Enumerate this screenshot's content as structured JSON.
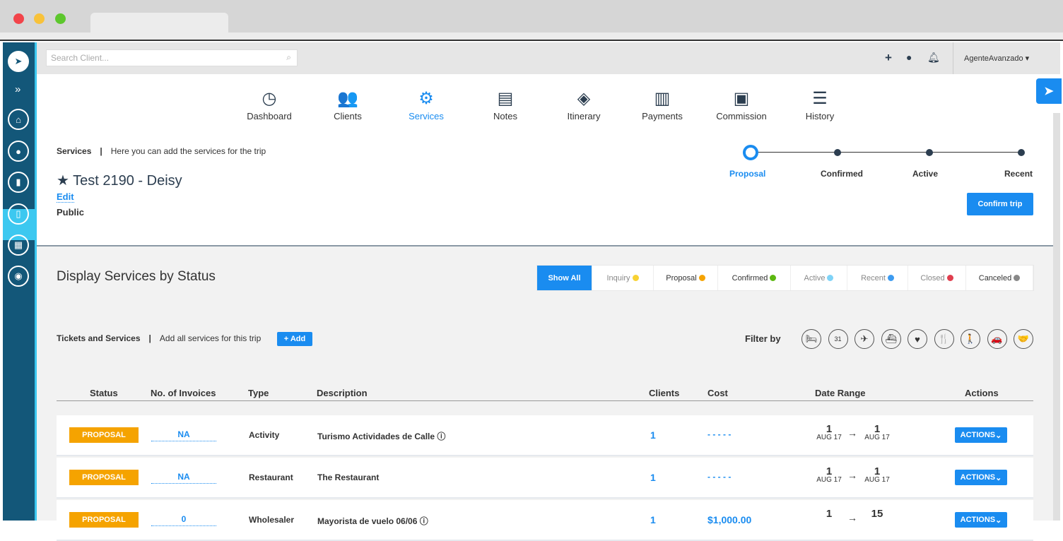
{
  "search": {
    "placeholder": "Search Client..."
  },
  "user": {
    "name": "AgenteAvanzado"
  },
  "nav": [
    {
      "label": "Dashboard",
      "icon": "dashboard-icon",
      "glyph": "◷"
    },
    {
      "label": "Clients",
      "icon": "clients-icon",
      "glyph": "👥"
    },
    {
      "label": "Services",
      "icon": "gear-icon",
      "glyph": "⚙"
    },
    {
      "label": "Notes",
      "icon": "notes-icon",
      "glyph": "▤"
    },
    {
      "label": "Itinerary",
      "icon": "layers-icon",
      "glyph": "◈"
    },
    {
      "label": "Payments",
      "icon": "receipt-icon",
      "glyph": "▥"
    },
    {
      "label": "Commission",
      "icon": "money-icon",
      "glyph": "▣"
    },
    {
      "label": "History",
      "icon": "list-icon",
      "glyph": "☰"
    }
  ],
  "header": {
    "section": "Services",
    "subtitle": "Here you can add the services for the trip",
    "trip_title": "Test 2190 - Deisy",
    "edit": "Edit",
    "visibility": "Public"
  },
  "steps": [
    "Proposal",
    "Confirmed",
    "Active",
    "Recent"
  ],
  "confirm_button": "Confirm trip",
  "status_filter": {
    "title": "Display Services by Status",
    "options": [
      {
        "label": "Show All",
        "color": ""
      },
      {
        "label": "Inquiry",
        "color": "#f8d233"
      },
      {
        "label": "Proposal",
        "color": "#f5a300"
      },
      {
        "label": "Confirmed",
        "color": "#5cb811"
      },
      {
        "label": "Active",
        "color": "#7fd3f7"
      },
      {
        "label": "Recent",
        "color": "#3d9bf0"
      },
      {
        "label": "Closed",
        "color": "#e03e4e"
      },
      {
        "label": "Canceled",
        "color": "#888888"
      }
    ]
  },
  "tickets": {
    "title": "Tickets and Services",
    "subtitle": "Add all services for this trip",
    "add": "+ Add",
    "filter_by": "Filter by",
    "filter_icons": [
      {
        "name": "hotel-icon",
        "glyph": "🛏"
      },
      {
        "name": "calendar-icon",
        "glyph": "31"
      },
      {
        "name": "plane-icon",
        "glyph": "✈"
      },
      {
        "name": "cruise-icon",
        "glyph": "⛴"
      },
      {
        "name": "heart-icon",
        "glyph": "♥"
      },
      {
        "name": "restaurant-icon",
        "glyph": "🍴"
      },
      {
        "name": "hiking-icon",
        "glyph": "🚶"
      },
      {
        "name": "car-icon",
        "glyph": "🚗"
      },
      {
        "name": "handshake-icon",
        "glyph": "🤝"
      }
    ]
  },
  "table": {
    "headers": [
      "Status",
      "No. of Invoices",
      "Type",
      "Description",
      "Clients",
      "Cost",
      "Date Range",
      "Actions"
    ],
    "rows": [
      {
        "status": "PROPOSAL",
        "invoices": "NA",
        "type": "Activity",
        "description": "Turismo Actividades de Calle",
        "info": true,
        "clients": "1",
        "cost": "- - - - -",
        "from_day": "1",
        "from_month": "AUG 17",
        "to_day": "1",
        "to_month": "AUG 17",
        "action": "ACTIONS"
      },
      {
        "status": "PROPOSAL",
        "invoices": "NA",
        "type": "Restaurant",
        "description": "The Restaurant",
        "info": false,
        "clients": "1",
        "cost": "- - - - -",
        "from_day": "1",
        "from_month": "AUG 17",
        "to_day": "1",
        "to_month": "AUG 17",
        "action": "ACTIONS"
      },
      {
        "status": "PROPOSAL",
        "invoices": "0",
        "type": "Wholesaler",
        "description": "Mayorista de vuelo 06/06",
        "info": true,
        "clients": "1",
        "cost": "$1,000.00",
        "from_day": "1",
        "from_month": "",
        "to_day": "15",
        "to_month": "",
        "action": "ACTIONS"
      }
    ]
  }
}
